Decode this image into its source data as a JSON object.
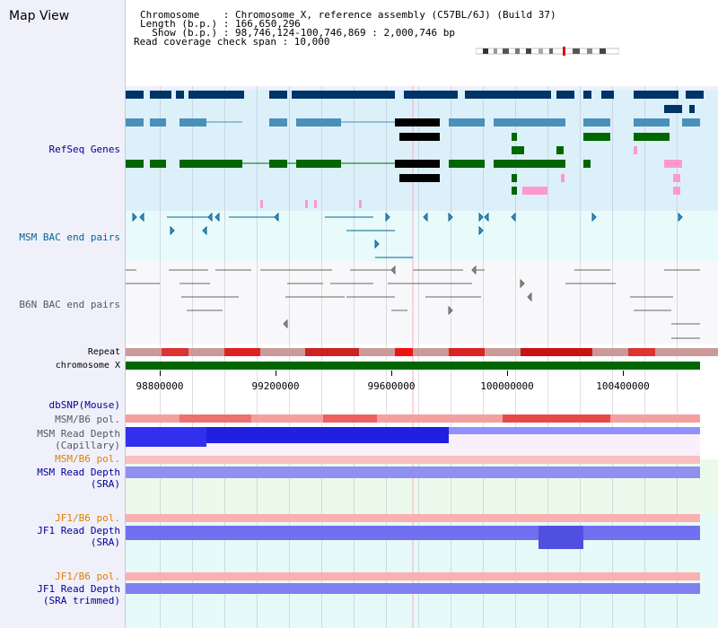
{
  "title": "Map View",
  "info": {
    "chromosome": "Chromosome    : Chromosome X, reference assembly (C57BL/6J) (Build 37)",
    "length": "Length (b.p.) : 166,650,296",
    "show": "  Show (b.p.) : 98,746,124-100,746,869 : 2,000,746 bp",
    "coverage": "Read coverage check span : 10,000"
  },
  "tracks": {
    "refseq": "RefSeq Genes",
    "msm_bac": "MSM BAC end pairs",
    "b6n_bac": "B6N BAC end pairs",
    "repeat": "Repeat",
    "chrom": "chromosome X",
    "dbsnp": "dbSNP(Mouse)",
    "msm_pol": "MSM/B6 pol.",
    "msm_depth_cap": "MSM Read Depth\n(Capillary)",
    "msm_pol2": "MSM/B6 pol.",
    "msm_depth_sra": "MSM Read Depth\n(SRA)",
    "jf1_pol": "JF1/B6 pol.",
    "jf1_depth_sra": "JF1 Read Depth\n(SRA)",
    "jf1_pol2": "JF1/B6 pol.",
    "jf1_depth_trim": "JF1 Read Depth\n(SRA trimmed)"
  },
  "axis": {
    "ticks": [
      "98800000",
      "99200000",
      "99600000",
      "100000000",
      "100400000"
    ]
  },
  "colors": {
    "navy": "#003366",
    "teal": "#4a90b8",
    "green": "#006600",
    "pink": "#ff99cc",
    "label_blue": "#000099",
    "label_teal": "#006699",
    "label_gray": "#555566",
    "label_orange": "#e08000",
    "chrom_green": "#006600"
  }
}
